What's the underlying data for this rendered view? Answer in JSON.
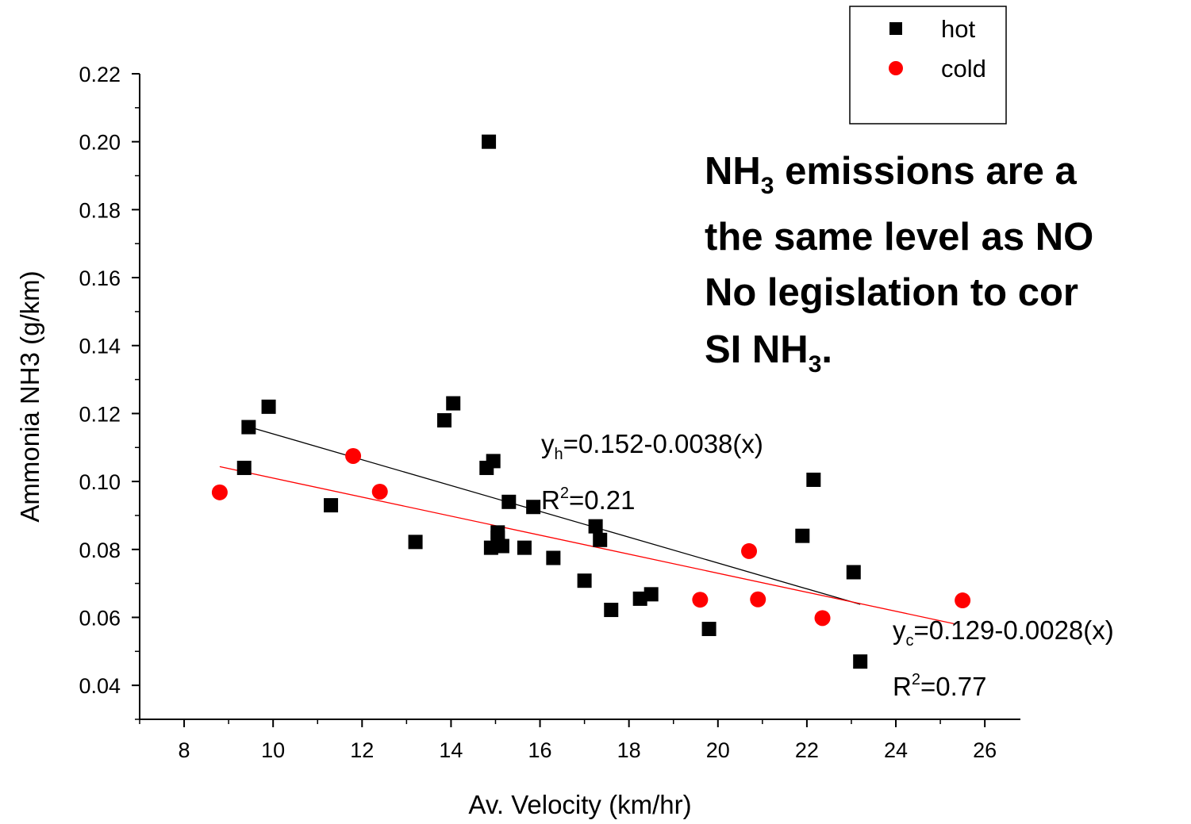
{
  "chart_data": {
    "type": "scatter",
    "xlabel": "Av. Velocity (km/hr)",
    "ylabel": "Ammonia NH3 (g/km)",
    "xlim": [
      7,
      26.8
    ],
    "ylim": [
      0.03,
      0.22
    ],
    "xticks": [
      "8",
      "10",
      "12",
      "14",
      "16",
      "18",
      "20",
      "22",
      "24",
      "26"
    ],
    "yticks": [
      "0.04",
      "0.06",
      "0.08",
      "0.10",
      "0.12",
      "0.14",
      "0.16",
      "0.18",
      "0.20",
      "0.22"
    ],
    "legend_position": "top-right",
    "series": [
      {
        "name": "hot",
        "marker": "square",
        "color": "#000000",
        "points": [
          [
            9.35,
            0.104
          ],
          [
            9.45,
            0.116
          ],
          [
            9.9,
            0.122
          ],
          [
            11.3,
            0.093
          ],
          [
            13.2,
            0.0822
          ],
          [
            13.85,
            0.118
          ],
          [
            14.05,
            0.123
          ],
          [
            14.8,
            0.104
          ],
          [
            14.85,
            0.2
          ],
          [
            14.9,
            0.0805
          ],
          [
            14.95,
            0.106
          ],
          [
            15.05,
            0.085
          ],
          [
            15.05,
            0.0835
          ],
          [
            15.15,
            0.081
          ],
          [
            15.3,
            0.094
          ],
          [
            15.65,
            0.0805
          ],
          [
            15.85,
            0.0925
          ],
          [
            16.3,
            0.0775
          ],
          [
            17.0,
            0.0708
          ],
          [
            17.25,
            0.0868
          ],
          [
            17.35,
            0.0828
          ],
          [
            17.6,
            0.0622
          ],
          [
            18.25,
            0.0655
          ],
          [
            18.5,
            0.0668
          ],
          [
            19.8,
            0.0566
          ],
          [
            21.9,
            0.084
          ],
          [
            22.15,
            0.1005
          ],
          [
            23.05,
            0.0733
          ],
          [
            23.2,
            0.047
          ]
        ]
      },
      {
        "name": "cold",
        "marker": "circle",
        "color": "#ff0000",
        "points": [
          [
            8.8,
            0.0968
          ],
          [
            11.8,
            0.1075
          ],
          [
            12.4,
            0.097
          ],
          [
            19.6,
            0.0652
          ],
          [
            20.7,
            0.0795
          ],
          [
            20.9,
            0.0653
          ],
          [
            22.35,
            0.0598
          ],
          [
            25.5,
            0.065
          ]
        ]
      }
    ],
    "fits": [
      {
        "series": "hot",
        "x_range": [
          9.4,
          23.2
        ],
        "intercept": 0.152,
        "slope": -0.0038,
        "color": "#000000"
      },
      {
        "series": "cold",
        "x_range": [
          8.8,
          25.3
        ],
        "intercept": 0.129,
        "slope": -0.0028,
        "color": "#ff0000"
      }
    ],
    "annotations": {
      "hot_eq_base": "y",
      "hot_eq_sub": "h",
      "hot_eq_rest": "=0.152-0.0038(x)",
      "hot_r2_base": "R",
      "hot_r2_sup": "2",
      "hot_r2_rest": "=0.21",
      "cold_eq_base": "y",
      "cold_eq_sub": "c",
      "cold_eq_rest": "=0.129-0.0028(x)",
      "cold_r2_base": "R",
      "cold_r2_sup": "2",
      "cold_r2_rest": "=0.77"
    },
    "note": {
      "line1_a": "NH",
      "line1_sub": "3",
      "line1_b": " emissions are a",
      "line2": "the same level as NO",
      "line3": "No legislation to cor",
      "line4_a": "SI NH",
      "line4_sub": "3",
      "line4_b": "."
    }
  }
}
